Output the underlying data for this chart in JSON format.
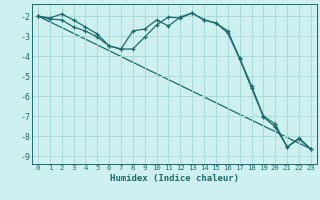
{
  "xlabel": "Humidex (Indice chaleur)",
  "background_color": "#cff0f0",
  "grid_color": "#a8dada",
  "line_color": "#1a6b6b",
  "xlim": [
    -0.5,
    23.5
  ],
  "ylim": [
    -9.4,
    -1.4
  ],
  "yticks": [
    -9,
    -8,
    -7,
    -6,
    -5,
    -4,
    -3,
    -2
  ],
  "xticks": [
    0,
    1,
    2,
    3,
    4,
    5,
    6,
    7,
    8,
    9,
    10,
    11,
    12,
    13,
    14,
    15,
    16,
    17,
    18,
    19,
    20,
    21,
    22,
    23
  ],
  "line1_x": [
    0,
    1,
    2,
    3,
    4,
    5,
    6,
    7,
    8,
    9,
    10,
    11,
    12,
    13,
    14,
    15,
    16,
    17,
    18,
    19,
    20,
    21,
    22,
    23
  ],
  "line1_y": [
    -2.0,
    -2.1,
    -1.9,
    -2.2,
    -2.55,
    -2.9,
    -3.5,
    -3.65,
    -2.75,
    -2.65,
    -2.2,
    -2.5,
    -2.05,
    -1.85,
    -2.2,
    -2.35,
    -2.75,
    -4.1,
    -5.5,
    -7.0,
    -7.4,
    -8.55,
    -8.1,
    -8.65
  ],
  "line2_x": [
    0,
    1,
    2,
    3,
    4,
    5,
    6,
    7,
    8,
    9,
    10,
    11,
    12,
    13,
    14,
    15,
    16,
    17,
    18,
    19,
    20,
    21,
    22,
    23
  ],
  "line2_y": [
    -2.0,
    -2.15,
    -2.2,
    -2.55,
    -2.75,
    -3.05,
    -3.5,
    -3.65,
    -3.65,
    -3.05,
    -2.45,
    -2.05,
    -2.1,
    -1.85,
    -2.2,
    -2.35,
    -2.85,
    -4.15,
    -5.6,
    -7.05,
    -7.55,
    -8.55,
    -8.15,
    -8.65
  ],
  "line3_x": [
    0,
    23
  ],
  "line3_y": [
    -2.0,
    -8.65
  ]
}
